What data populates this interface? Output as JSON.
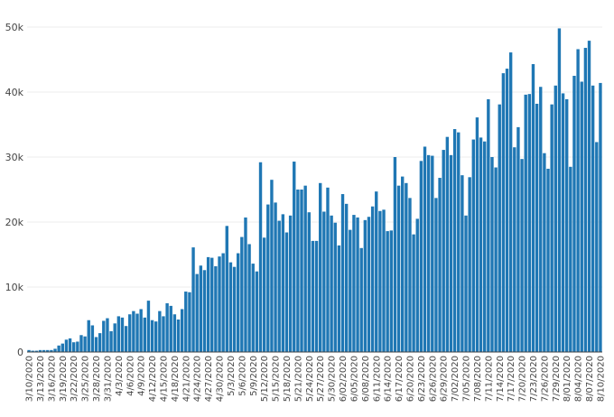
{
  "chart_data": {
    "type": "bar",
    "title": "",
    "xlabel": "",
    "ylabel": "",
    "ylim": [
      0,
      50000
    ],
    "yticks": [
      0,
      10000,
      20000,
      30000,
      40000,
      50000
    ],
    "ytick_labels": [
      "0",
      "10k",
      "20k",
      "30k",
      "40k",
      "50k"
    ],
    "grid": true,
    "legend": "none",
    "bar_color": "#1f77b4",
    "x_first_date": "3/10/2020",
    "x_last_date": "8/10/2020",
    "xtick_labels": [
      "3/10/2020",
      "3/13/2020",
      "3/16/2020",
      "3/19/2020",
      "3/22/2020",
      "3/25/2020",
      "3/28/2020",
      "3/31/2020",
      "4/3/2020",
      "4/6/2020",
      "4/9/2020",
      "4/12/2020",
      "4/15/2020",
      "4/18/2020",
      "4/21/2020",
      "4/24/2020",
      "4/27/2020",
      "4/30/2020",
      "5/3/2020",
      "5/6/2020",
      "5/9/2020",
      "5/12/2020",
      "5/15/2020",
      "5/18/2020",
      "5/21/2020",
      "5/24/2020",
      "5/27/2020",
      "5/30/2020",
      "6/02/2020",
      "6/05/2020",
      "6/08/2020",
      "6/11/2020",
      "6/14/2020",
      "6/17/2020",
      "6/20/2020",
      "6/23/2020",
      "6/26/2020",
      "6/29/2020",
      "7/02/2020",
      "7/05/2020",
      "7/08/2020",
      "7/11/2020",
      "7/14/2020",
      "7/17/2020",
      "7/20/2020",
      "7/23/2020",
      "7/26/2020",
      "7/29/2020",
      "8/01/2020",
      "8/04/2020",
      "8/07/2020",
      "8/10/2020"
    ],
    "values": [
      300,
      200,
      200,
      300,
      300,
      300,
      300,
      500,
      1000,
      1300,
      1900,
      2100,
      1500,
      1600,
      2600,
      2400,
      4900,
      4100,
      2300,
      2900,
      4800,
      5200,
      3200,
      4400,
      5500,
      5300,
      4000,
      5800,
      6300,
      5900,
      6600,
      5300,
      7900,
      4900,
      4700,
      6300,
      5500,
      7500,
      7100,
      5800,
      5000,
      6600,
      9300,
      9200,
      16100,
      12000,
      13300,
      12600,
      14600,
      14500,
      13200,
      14700,
      15200,
      19400,
      13800,
      13100,
      15200,
      17700,
      20700,
      16600,
      13600,
      12400,
      29200,
      17600,
      22700,
      26500,
      23000,
      20200,
      21200,
      18400,
      21000,
      29300,
      25000,
      25000,
      25600,
      21500,
      17100,
      17100,
      26000,
      21600,
      25300,
      21000,
      19900,
      16400,
      24300,
      22800,
      18800,
      21100,
      20700,
      16000,
      20300,
      20800,
      22400,
      24700,
      21700,
      21900,
      18600,
      18700,
      30000,
      25600,
      27000,
      26000,
      23700,
      18100,
      20500,
      29400,
      31600,
      30300,
      30200,
      23700,
      26800,
      31100,
      33100,
      30300,
      34300,
      33800,
      27200,
      21000,
      26900,
      32700,
      36100,
      33000,
      32400,
      38900,
      30000,
      28400,
      38100,
      42900,
      43600,
      46100,
      31500,
      34600,
      29700,
      39600,
      39700,
      44300,
      38200,
      40800,
      30600,
      28200,
      38100,
      41000,
      49800,
      39800,
      38900,
      28500,
      42500,
      46600,
      41600,
      46800,
      47900,
      41000,
      32300,
      41400
    ]
  }
}
